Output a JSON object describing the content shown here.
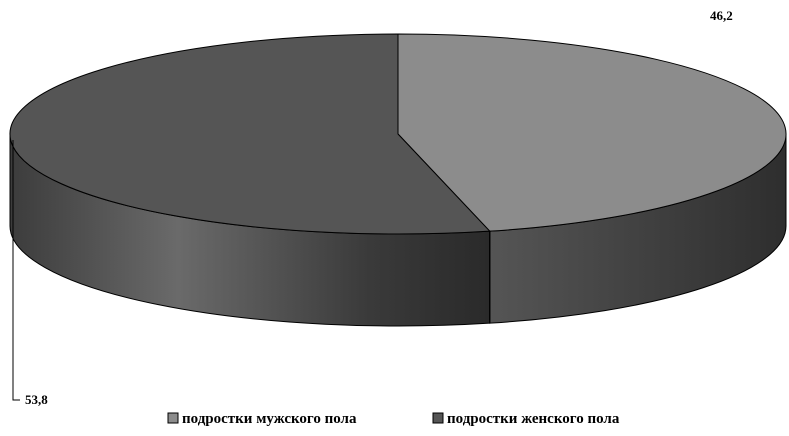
{
  "chart_data": {
    "type": "pie",
    "style": "3d",
    "slices": [
      {
        "label": "подростки мужского пола",
        "value": 46.2,
        "value_label": "46,2",
        "color": "#8c8c8c"
      },
      {
        "label": "подростки женского пола",
        "value": 53.8,
        "value_label": "53,8",
        "color": "#555555"
      }
    ],
    "legend": "bottom"
  }
}
